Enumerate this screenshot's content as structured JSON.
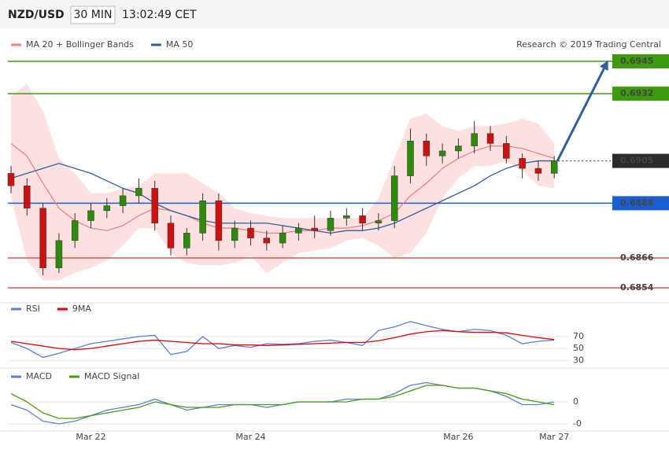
{
  "chart_data": [
    {
      "type": "candlestick",
      "title": "NZD/USD",
      "subtitle": "30 MIN",
      "timestamp": "13:02:49 CET",
      "source": "Research © 2019 Trading Central",
      "categories": [
        null,
        null,
        null,
        null,
        null,
        "Mar 22",
        null,
        null,
        null,
        null,
        null,
        null,
        null,
        null,
        null,
        "Mar 24",
        null,
        null,
        null,
        null,
        null,
        null,
        null,
        null,
        null,
        null,
        null,
        null,
        "Mar 26",
        null,
        null,
        null,
        null,
        null,
        "Mar 27"
      ],
      "open": [
        0.69,
        0.6895,
        0.6886,
        0.6862,
        0.6873,
        0.6881,
        0.6885,
        0.6887,
        0.6891,
        0.6894,
        0.688,
        0.687,
        0.6876,
        0.6889,
        0.6873,
        0.6878,
        0.6874,
        0.6872,
        0.6876,
        0.6878,
        0.6877,
        0.6882,
        0.6883,
        0.688,
        0.6881,
        0.6899,
        0.6913,
        0.6907,
        0.6909,
        0.6911,
        0.6916,
        0.6912,
        0.6906,
        0.6902,
        0.69
      ],
      "high": [
        0.6903,
        0.6898,
        0.6888,
        0.6876,
        0.6884,
        0.6888,
        0.689,
        0.6894,
        0.6898,
        0.6897,
        0.6883,
        0.6878,
        0.6892,
        0.6892,
        0.6881,
        0.6881,
        0.6877,
        0.6879,
        0.688,
        0.6883,
        0.6885,
        0.6886,
        0.6886,
        0.6884,
        0.6903,
        0.6918,
        0.6916,
        0.6912,
        0.6914,
        0.6921,
        0.6919,
        0.6915,
        0.6908,
        0.6905,
        0.6907
      ],
      "low": [
        0.6892,
        0.6883,
        0.6859,
        0.686,
        0.687,
        0.6878,
        0.6882,
        0.6884,
        0.6888,
        0.6877,
        0.6867,
        0.6867,
        0.6873,
        0.6869,
        0.687,
        0.6871,
        0.6869,
        0.687,
        0.6873,
        0.6874,
        0.6875,
        0.6879,
        0.6877,
        0.6877,
        0.6878,
        0.6896,
        0.6903,
        0.6904,
        0.6906,
        0.6908,
        0.6909,
        0.6904,
        0.6898,
        0.6897,
        0.6898
      ],
      "close": [
        0.6895,
        0.6886,
        0.6862,
        0.6873,
        0.6881,
        0.6885,
        0.6887,
        0.6891,
        0.6894,
        0.688,
        0.687,
        0.6876,
        0.6889,
        0.6873,
        0.6878,
        0.6874,
        0.6872,
        0.6876,
        0.6878,
        0.6877,
        0.6882,
        0.6883,
        0.688,
        0.6881,
        0.6899,
        0.6913,
        0.6907,
        0.6909,
        0.6911,
        0.6916,
        0.6912,
        0.6906,
        0.6902,
        0.69,
        0.6905
      ],
      "up_color": "#2e8b0a",
      "down_color": "#cc1111",
      "series": [
        {
          "name": "MA 20 + Bollinger Bands",
          "color": "#f08080",
          "values": [
            0.6912,
            0.6907,
            0.6896,
            0.6886,
            0.6881,
            0.6878,
            0.6877,
            0.6879,
            0.6883,
            0.6886,
            0.6885,
            0.6883,
            0.688,
            0.6878,
            0.6878,
            0.6877,
            0.6876,
            0.6876,
            0.6877,
            0.6877,
            0.6878,
            0.6878,
            0.6879,
            0.6881,
            0.6884,
            0.6891,
            0.6896,
            0.6902,
            0.6906,
            0.6909,
            0.6911,
            0.6911,
            0.691,
            0.6908,
            0.6906
          ]
        },
        {
          "name": "MA 50",
          "color": "#2f5f9f",
          "values": [
            0.6898,
            0.69,
            0.6902,
            0.6904,
            0.6902,
            0.69,
            0.6897,
            0.6894,
            0.6892,
            0.6888,
            0.6885,
            0.6883,
            0.6881,
            0.688,
            0.688,
            0.688,
            0.688,
            0.6879,
            0.6878,
            0.6877,
            0.6876,
            0.6877,
            0.6877,
            0.6878,
            0.688,
            0.6883,
            0.6886,
            0.6889,
            0.6892,
            0.6895,
            0.6899,
            0.6902,
            0.6904,
            0.6905,
            0.6905
          ]
        }
      ],
      "bands": {
        "color": "#fde1e1",
        "upper": [
          0.6931,
          0.6936,
          0.6925,
          0.6906,
          0.69,
          0.6892,
          0.6892,
          0.6894,
          0.6895,
          0.69,
          0.69,
          0.69,
          0.6896,
          0.6892,
          0.6886,
          0.6884,
          0.6883,
          0.6882,
          0.6882,
          0.6882,
          0.6882,
          0.6882,
          0.6882,
          0.689,
          0.6906,
          0.6922,
          0.6924,
          0.6919,
          0.6917,
          0.6919,
          0.6919,
          0.692,
          0.6922,
          0.692,
          0.6912
        ],
        "lower": [
          0.689,
          0.6865,
          0.6857,
          0.6857,
          0.686,
          0.6862,
          0.6865,
          0.6871,
          0.6878,
          0.6878,
          0.6868,
          0.6864,
          0.6863,
          0.6863,
          0.6864,
          0.6867,
          0.686,
          0.6864,
          0.6868,
          0.6869,
          0.687,
          0.6873,
          0.6874,
          0.6871,
          0.6866,
          0.6868,
          0.6876,
          0.689,
          0.6898,
          0.6903,
          0.6903,
          0.6905,
          0.6901,
          0.6895,
          0.6894
        ]
      },
      "ylim": [
        0.6848,
        0.6957
      ],
      "levels": [
        {
          "value": 0.6945,
          "color": "#3d9a0c",
          "style": "solid",
          "label_style": "box"
        },
        {
          "value": 0.6932,
          "color": "#3d9a0c",
          "style": "solid",
          "label_style": "box"
        },
        {
          "value": 0.6905,
          "color": "#2b2b2b",
          "style": "dotted",
          "label_style": "box"
        },
        {
          "value": 0.6888,
          "color": "#1a5fd1",
          "style": "solid",
          "label_style": "box"
        },
        {
          "value": 0.6866,
          "color": "#e05555",
          "style": "solid",
          "label_style": "text"
        },
        {
          "value": 0.6854,
          "color": "#e05555",
          "style": "solid",
          "label_style": "text"
        }
      ],
      "target": 0.6945,
      "target_color": "#2f5f9f"
    },
    {
      "type": "line",
      "series": [
        {
          "name": "RSI",
          "color": "#5b7fd6",
          "values": [
            60,
            50,
            35,
            42,
            50,
            58,
            62,
            66,
            70,
            72,
            40,
            45,
            70,
            50,
            55,
            52,
            58,
            57,
            58,
            62,
            64,
            60,
            55,
            80,
            86,
            95,
            88,
            82,
            78,
            82,
            80,
            72,
            58,
            62,
            64
          ]
        },
        {
          "name": "9MA",
          "color": "#e00000",
          "values": [
            62,
            58,
            54,
            50,
            48,
            50,
            54,
            58,
            62,
            64,
            62,
            60,
            58,
            58,
            56,
            56,
            55,
            56,
            57,
            58,
            59,
            60,
            60,
            63,
            68,
            74,
            78,
            80,
            78,
            77,
            77,
            76,
            72,
            68,
            65
          ]
        }
      ],
      "ylim": [
        20,
        100
      ],
      "yticks": [
        30,
        50,
        70
      ]
    },
    {
      "type": "line",
      "series": [
        {
          "name": "MACD",
          "color": "#5b7fd6",
          "values": [
            -0.0001,
            -0.0003,
            -0.0007,
            -0.0008,
            -0.0007,
            -0.0005,
            -0.0003,
            -0.0002,
            -0.0001,
            0.0001,
            -0.0001,
            -0.0003,
            -0.0002,
            -0.0001,
            -0.0001,
            -0.0001,
            -0.0002,
            -0.0001,
            0,
            0,
            0,
            0.0001,
            0.0001,
            0.0001,
            0.0003,
            0.0006,
            0.0007,
            0.0006,
            0.0005,
            0.0005,
            0.0004,
            0.0002,
            -0.0001,
            -0.0001,
            0
          ]
        },
        {
          "name": "MACD Signal",
          "color": "#4a9a10",
          "values": [
            0.0003,
            0,
            -0.0004,
            -0.0006,
            -0.0006,
            -0.0005,
            -0.0004,
            -0.0003,
            -0.0002,
            0,
            -0.0001,
            -0.0002,
            -0.0002,
            -0.0002,
            -0.0001,
            -0.0001,
            -0.0001,
            -0.0001,
            0,
            0,
            0,
            0,
            0.0001,
            0.0001,
            0.0002,
            0.0004,
            0.0006,
            0.0006,
            0.0005,
            0.0005,
            0.0004,
            0.0003,
            0.0001,
            0,
            -0.0001
          ]
        }
      ],
      "ylim": [
        -0.001,
        0.0006
      ],
      "yticks": [
        0,
        {
          "value": -0.0008,
          "label": "-0"
        }
      ]
    }
  ]
}
